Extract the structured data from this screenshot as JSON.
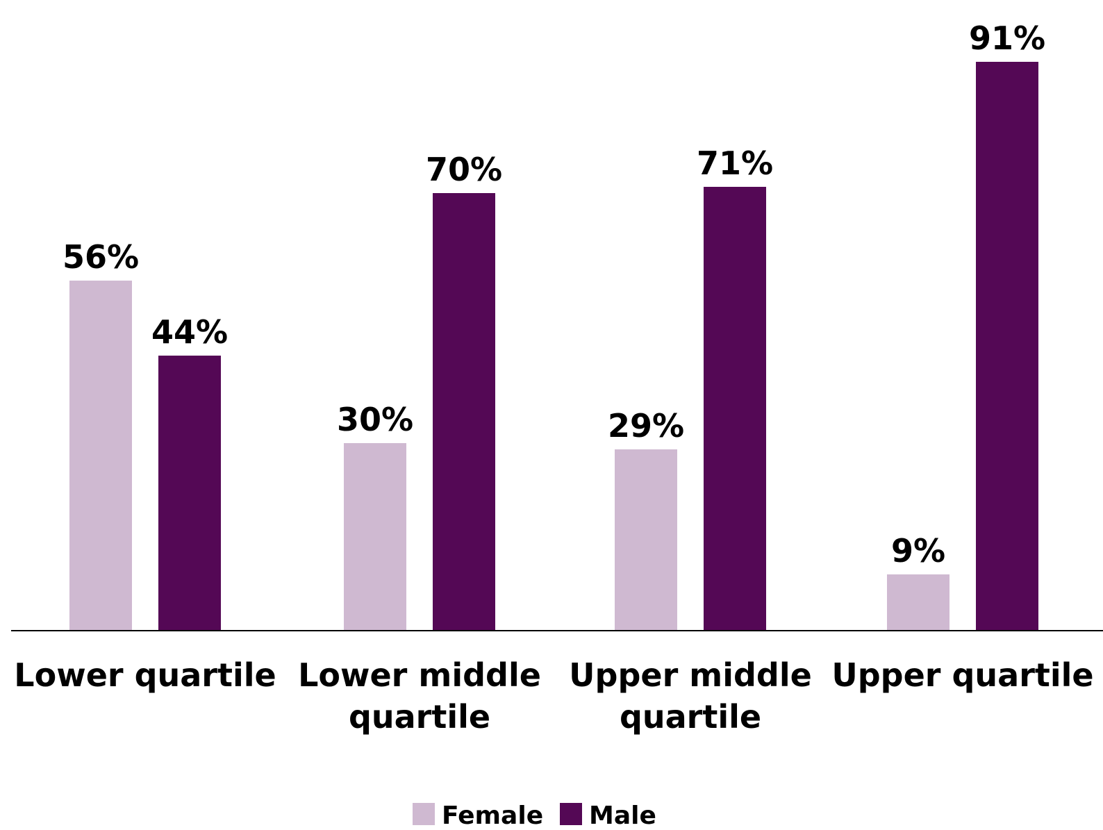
{
  "chart_data": {
    "type": "bar",
    "categories": [
      [
        "Lower quartile"
      ],
      [
        "Lower middle",
        "quartile"
      ],
      [
        "Upper middle",
        "quartile"
      ],
      [
        "Upper quartile"
      ]
    ],
    "series": [
      {
        "name": "Female",
        "color": "#cfb9d1",
        "values": [
          56,
          30,
          29,
          9
        ],
        "labels": [
          "56%",
          "30%",
          "29%",
          "9%"
        ]
      },
      {
        "name": "Male",
        "color": "#540855",
        "values": [
          44,
          70,
          71,
          91
        ],
        "labels": [
          "44%",
          "70%",
          "71%",
          "91%"
        ]
      }
    ],
    "ylim": [
      0,
      100
    ],
    "grid": false,
    "legend_position": "bottom-center",
    "axis_line_color": "#000000"
  }
}
